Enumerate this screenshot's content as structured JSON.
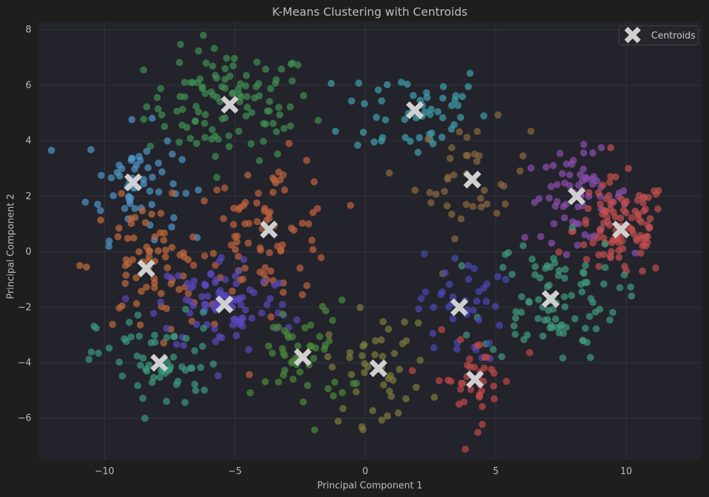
{
  "chart_data": {
    "type": "scatter",
    "title": "K-Means Clustering with Centroids",
    "xlabel": "Principal Component 1",
    "ylabel": "Principal Component 2",
    "xlim": [
      -12.5,
      12.9
    ],
    "ylim": [
      -7.5,
      8.3
    ],
    "xticks": [
      -10,
      -5,
      0,
      5,
      10
    ],
    "yticks": [
      -6,
      -4,
      -2,
      0,
      2,
      4,
      6,
      8
    ],
    "grid": true,
    "legend": {
      "placement": "top-right",
      "entries": [
        "Centroids"
      ]
    },
    "colors": {
      "background": "#1e1e1e",
      "plot_bg": "#23232b",
      "grid": "#33333b",
      "centroid": "#d0d0d0"
    },
    "clusters": [
      {
        "color": "#3f8f52",
        "center": [
          -5.2,
          5.3
        ],
        "spread": [
          1.6,
          1.0
        ],
        "n": 110
      },
      {
        "color": "#3f9fae",
        "center": [
          1.9,
          5.1
        ],
        "spread": [
          1.4,
          0.9
        ],
        "n": 55
      },
      {
        "color": "#4f95c8",
        "center": [
          -8.9,
          2.5
        ],
        "spread": [
          0.9,
          1.0
        ],
        "n": 60
      },
      {
        "color": "#8a6a3f",
        "center": [
          4.1,
          2.6
        ],
        "spread": [
          1.1,
          1.0
        ],
        "n": 40
      },
      {
        "color": "#8c4eae",
        "center": [
          8.1,
          2.0
        ],
        "spread": [
          1.0,
          0.8
        ],
        "n": 65
      },
      {
        "color": "#c14e4e",
        "center": [
          9.8,
          0.8
        ],
        "spread": [
          0.9,
          0.9
        ],
        "n": 110
      },
      {
        "color": "#c0633f",
        "center": [
          -3.7,
          0.8
        ],
        "spread": [
          1.3,
          1.3
        ],
        "n": 85
      },
      {
        "color": "#c06a3a",
        "center": [
          -8.4,
          -0.6
        ],
        "spread": [
          1.1,
          1.2
        ],
        "n": 70
      },
      {
        "color": "#5a48ba",
        "center": [
          -5.4,
          -1.9
        ],
        "spread": [
          1.3,
          0.9
        ],
        "n": 95
      },
      {
        "color": "#3f9a7e",
        "center": [
          7.1,
          -1.7
        ],
        "spread": [
          1.3,
          1.1
        ],
        "n": 90
      },
      {
        "color": "#4a49b6",
        "center": [
          3.6,
          -2.0
        ],
        "spread": [
          0.8,
          1.0
        ],
        "n": 40
      },
      {
        "color": "#3c9a80",
        "center": [
          -7.9,
          -4.0
        ],
        "spread": [
          1.2,
          0.9
        ],
        "n": 60
      },
      {
        "color": "#4a8a3a",
        "center": [
          -2.4,
          -3.8
        ],
        "spread": [
          0.9,
          1.0
        ],
        "n": 50
      },
      {
        "color": "#7d7a3c",
        "center": [
          0.5,
          -4.2
        ],
        "spread": [
          1.0,
          1.0
        ],
        "n": 45
      },
      {
        "color": "#c04848",
        "center": [
          4.2,
          -4.6
        ],
        "spread": [
          0.8,
          0.8
        ],
        "n": 40
      }
    ],
    "centroids": [
      [
        -5.2,
        5.3
      ],
      [
        1.9,
        5.1
      ],
      [
        -8.9,
        2.5
      ],
      [
        4.1,
        2.6
      ],
      [
        8.1,
        2.0
      ],
      [
        9.8,
        0.8
      ],
      [
        -3.7,
        0.8
      ],
      [
        -8.4,
        -0.6
      ],
      [
        -5.4,
        -1.9
      ],
      [
        7.1,
        -1.7
      ],
      [
        3.6,
        -2.0
      ],
      [
        -7.9,
        -4.0
      ],
      [
        -2.4,
        -3.8
      ],
      [
        0.5,
        -4.2
      ],
      [
        4.2,
        -4.6
      ]
    ]
  }
}
